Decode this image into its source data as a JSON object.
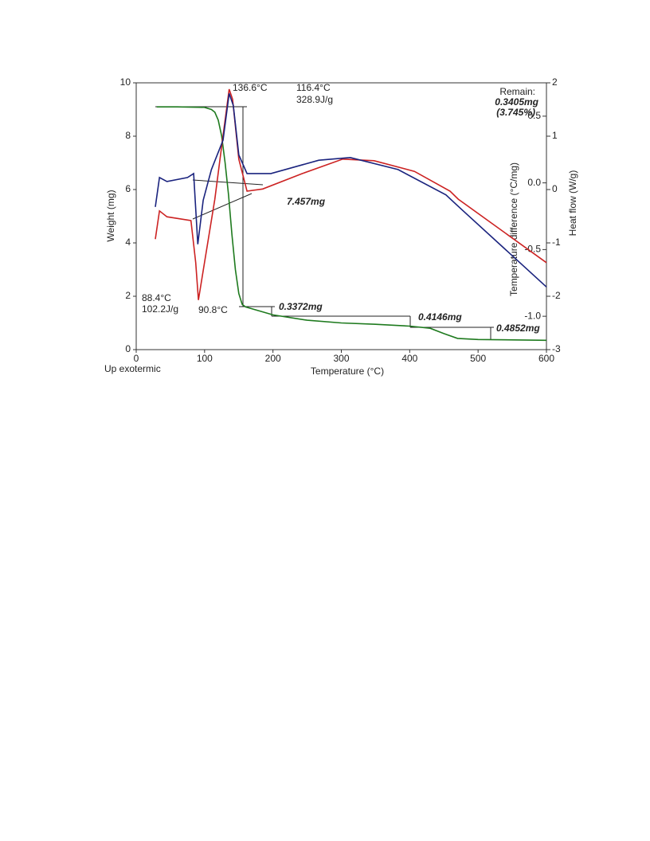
{
  "chart_data": {
    "type": "line",
    "xlabel": "Temperature (°C)",
    "ylabel": "Weight (mg)",
    "y2label": "Heat flow (W/g)",
    "y3label": "Temperature difference (°C/mg)",
    "xlim": [
      0,
      600
    ],
    "xticks": [
      0,
      100,
      200,
      300,
      400,
      500,
      600
    ],
    "ylim": [
      0,
      10
    ],
    "yticks": [
      0,
      2,
      4,
      6,
      8,
      10
    ],
    "y2lim": [
      -3,
      2
    ],
    "y2ticks": [
      -3,
      -2,
      -1,
      0,
      1,
      2
    ],
    "y3lim": [
      -1.25,
      0.75
    ],
    "y3ticks": [
      0.5,
      {
        "value": 0,
        "label": "0.0"
      },
      -0.5,
      {
        "value": -1,
        "label": "-1.0"
      }
    ],
    "series": [
      {
        "color": "#1e7a1e",
        "axis": "y",
        "x": [
          30,
          60,
          100,
          110,
          115,
          120,
          125,
          130,
          135,
          140,
          145,
          150,
          155,
          160,
          180,
          200,
          250,
          300,
          350,
          400,
          430,
          450,
          470,
          500,
          600
        ],
        "values": [
          9.1,
          9.1,
          9.08,
          9.0,
          8.9,
          8.6,
          8.0,
          7.0,
          5.8,
          4.3,
          3.0,
          2.1,
          1.7,
          1.6,
          1.45,
          1.3,
          1.1,
          1.0,
          0.95,
          0.88,
          0.8,
          0.6,
          0.42,
          0.38,
          0.35
        ]
      },
      {
        "color": "#cc2222",
        "axis": "y2",
        "x": [
          28,
          34,
          45,
          80,
          87,
          91,
          98,
          115,
          127,
          136,
          141,
          150,
          162,
          185,
          243,
          302,
          348,
          407,
          459,
          471,
          600
        ],
        "values": [
          -0.93,
          -0.4,
          -0.51,
          -0.58,
          -1.37,
          -2.07,
          -1.52,
          -0.18,
          1.01,
          1.88,
          1.69,
          0.57,
          -0.03,
          0.01,
          0.3,
          0.57,
          0.54,
          0.34,
          -0.03,
          -0.18,
          -1.37
        ]
      },
      {
        "color": "#1a237e",
        "axis": "y3",
        "x": [
          28,
          34,
          45,
          75,
          84,
          90,
          98,
          110,
          127,
          136,
          142,
          150,
          162,
          197,
          267,
          313,
          383,
          453,
          476,
          600
        ],
        "values": [
          -0.18,
          0.04,
          0.01,
          0.04,
          0.07,
          -0.46,
          -0.13,
          0.1,
          0.32,
          0.67,
          0.58,
          0.21,
          0.07,
          0.07,
          0.17,
          0.19,
          0.1,
          -0.09,
          -0.2,
          -0.78
        ]
      }
    ],
    "annotations": [
      "136.6°C",
      "116.4°C",
      "328.9J/g",
      "Remain:",
      "0.3405mg",
      "(3.745%)",
      "7.457mg",
      "88.4°C",
      "102.2J/g",
      "90.8°C",
      "0.3372mg",
      "0.4146mg",
      "0.4852mg",
      "Up exotermic"
    ]
  }
}
